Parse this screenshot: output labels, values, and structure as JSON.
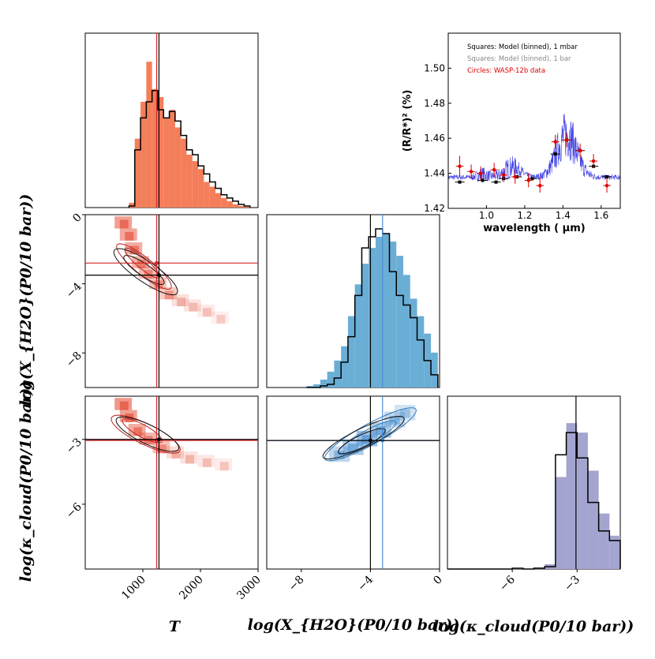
{
  "chart_data": [
    {
      "panel": "T-marginal",
      "type": "bar",
      "x_bin_edges": [
        760,
        860,
        960,
        1060,
        1160,
        1260,
        1360,
        1460,
        1560,
        1660,
        1760,
        1860,
        1960,
        2060,
        2160,
        2260,
        2360,
        2460,
        2560,
        2660,
        2760,
        2860
      ],
      "series": [
        {
          "name": "",
          "color": "#f47e5a",
          "values": [
            0.03,
            0.43,
            0.66,
            0.91,
            0.74,
            0.69,
            0.56,
            0.61,
            0.5,
            0.43,
            0.33,
            0.29,
            0.24,
            0.16,
            0.13,
            0.09,
            0.06,
            0.04,
            0.02,
            0.01,
            0.005
          ]
        },
        {
          "name": "",
          "color": "#000000",
          "values": [
            0.01,
            0.36,
            0.56,
            0.66,
            0.73,
            0.61,
            0.56,
            0.6,
            0.54,
            0.45,
            0.36,
            0.33,
            0.26,
            0.21,
            0.16,
            0.12,
            0.08,
            0.06,
            0.04,
            0.02,
            0.01
          ]
        }
      ],
      "truth": {
        "red": 1240,
        "black": 1280
      },
      "xlim": [
        0,
        3000
      ]
    },
    {
      "panel": "logX-marginal",
      "type": "bar",
      "x_bin_edges": [
        -7.7,
        -7.3,
        -6.9,
        -6.5,
        -6.1,
        -5.7,
        -5.3,
        -4.9,
        -4.5,
        -4.1,
        -3.7,
        -3.3,
        -2.9,
        -2.5,
        -2.1,
        -1.7,
        -1.3,
        -0.9,
        -0.5,
        -0.1
      ],
      "series": [
        {
          "name": "",
          "color": "#6aaed6",
          "values": [
            0.01,
            0.02,
            0.05,
            0.1,
            0.17,
            0.26,
            0.45,
            0.65,
            0.78,
            0.88,
            0.95,
            0.97,
            0.92,
            0.83,
            0.71,
            0.56,
            0.45,
            0.34,
            0.22
          ]
        },
        {
          "name": "",
          "color": "#000000",
          "values": [
            0.0,
            0.0,
            0.01,
            0.02,
            0.06,
            0.16,
            0.32,
            0.58,
            0.88,
            0.95,
            1.0,
            0.97,
            0.73,
            0.58,
            0.52,
            0.44,
            0.3,
            0.17,
            0.08
          ]
        }
      ],
      "truth": {
        "blue": -3.3,
        "black": -4.0
      },
      "xlim": [
        -10,
        0
      ]
    },
    {
      "panel": "logKappa-marginal",
      "type": "bar",
      "x_bin_edges": [
        -9.0,
        -8.5,
        -8.0,
        -7.5,
        -7.0,
        -6.5,
        -6.0,
        -5.5,
        -5.0,
        -4.5,
        -4.0,
        -3.5,
        -3.0,
        -2.5,
        -2.0,
        -1.5,
        -1.0
      ],
      "series": [
        {
          "name": "",
          "color": "#a4a4d0",
          "values": [
            0.0,
            0.0,
            0.0,
            0.0,
            0.0,
            0.0,
            0.005,
            0.0,
            0.01,
            0.03,
            0.58,
            0.92,
            0.86,
            0.62,
            0.35,
            0.21
          ]
        },
        {
          "name": "",
          "color": "#000000",
          "values": [
            0.0,
            0.0,
            0.0,
            0.0,
            0.0,
            0.0,
            0.005,
            0.0,
            0.005,
            0.015,
            0.72,
            0.86,
            0.7,
            0.42,
            0.24,
            0.18
          ]
        }
      ],
      "truth": {
        "black": -3.05
      },
      "xlim": [
        -9.0,
        -1.0
      ]
    },
    {
      "panel": "T-vs-logX",
      "type": "scatter",
      "xlim": [
        0,
        3000
      ],
      "ylim": [
        -10,
        0
      ],
      "yticks": [
        "0",
        "−4",
        "−8"
      ],
      "truth": {
        "red_x": 1240,
        "red_y": -2.8,
        "black_x": 1280,
        "black_y": -3.5
      }
    },
    {
      "panel": "T-vs-logKappa",
      "type": "scatter",
      "xlim": [
        0,
        3000
      ],
      "ylim": [
        -9.0,
        -1.0
      ],
      "xticks": [
        "1000",
        "2000",
        "3000"
      ],
      "yticks": [
        "−3",
        "−6"
      ],
      "truth": {
        "red_x": 1240,
        "red_y": -3.05,
        "black_x": 1280,
        "black_y": -3.0
      }
    },
    {
      "panel": "logX-vs-logKappa",
      "type": "scatter",
      "xlim": [
        -10,
        0
      ],
      "ylim": [
        -9.0,
        -1.0
      ],
      "xticks": [
        "−8",
        "−4",
        "0"
      ],
      "truth": {
        "blue_x": -3.3,
        "blue_y": -3.05,
        "black_x": -4.0,
        "black_y": -3.05
      }
    },
    {
      "panel": "spectrum",
      "type": "line",
      "xlabel": "wavelength ( μm)",
      "ylabel": "(R/R*)² (%)",
      "xlim": [
        0.8,
        1.7
      ],
      "ylim": [
        1.42,
        1.52
      ],
      "xticks": [
        "1.0",
        "1.2",
        "1.4",
        "1.6"
      ],
      "yticks": [
        "1.42",
        "1.44",
        "1.46",
        "1.48",
        "1.50"
      ],
      "legend": [
        {
          "text": "Squares: Model (binned), 1 mbar",
          "color": "#000000"
        },
        {
          "text": "Squares: Model (binned), 1 bar",
          "color": "#888888"
        },
        {
          "text": "Circles: WASP-12b data",
          "color": "#dd0000"
        }
      ],
      "data_points": [
        {
          "x": 0.86,
          "y": 1.444,
          "xerr": 0.02,
          "yerr": 0.006
        },
        {
          "x": 0.92,
          "y": 1.441,
          "xerr": 0.02,
          "yerr": 0.004
        },
        {
          "x": 0.97,
          "y": 1.44,
          "xerr": 0.02,
          "yerr": 0.004
        },
        {
          "x": 1.04,
          "y": 1.442,
          "xerr": 0.02,
          "yerr": 0.004
        },
        {
          "x": 1.09,
          "y": 1.439,
          "xerr": 0.02,
          "yerr": 0.004
        },
        {
          "x": 1.15,
          "y": 1.438,
          "xerr": 0.02,
          "yerr": 0.004
        },
        {
          "x": 1.22,
          "y": 1.436,
          "xerr": 0.02,
          "yerr": 0.004
        },
        {
          "x": 1.28,
          "y": 1.433,
          "xerr": 0.02,
          "yerr": 0.004
        },
        {
          "x": 1.36,
          "y": 1.458,
          "xerr": 0.02,
          "yerr": 0.004
        },
        {
          "x": 1.42,
          "y": 1.459,
          "xerr": 0.02,
          "yerr": 0.004
        },
        {
          "x": 1.49,
          "y": 1.453,
          "xerr": 0.02,
          "yerr": 0.004
        },
        {
          "x": 1.56,
          "y": 1.447,
          "xerr": 0.02,
          "yerr": 0.004
        },
        {
          "x": 1.63,
          "y": 1.433,
          "xerr": 0.02,
          "yerr": 0.004
        }
      ],
      "model_1mbar": [
        {
          "x": 0.86,
          "y": 1.435
        },
        {
          "x": 0.98,
          "y": 1.436
        },
        {
          "x": 1.05,
          "y": 1.435
        },
        {
          "x": 1.09,
          "y": 1.437
        },
        {
          "x": 1.16,
          "y": 1.438
        },
        {
          "x": 1.24,
          "y": 1.437
        },
        {
          "x": 1.36,
          "y": 1.451
        },
        {
          "x": 1.42,
          "y": 1.459
        },
        {
          "x": 1.49,
          "y": 1.453
        },
        {
          "x": 1.56,
          "y": 1.444
        },
        {
          "x": 1.63,
          "y": 1.438
        }
      ]
    }
  ],
  "labels": {
    "xlabel_T": "T",
    "xlabel_logX": "log(X_{H2O}(P0/10 bar))",
    "xlabel_logKappa": "log(κ_cloud(P0/10 bar))",
    "ylabel_logX": "log(X_{H2O}(P0/10 bar))",
    "ylabel_logKappa": "log(κ_cloud(P0/10 bar))"
  }
}
